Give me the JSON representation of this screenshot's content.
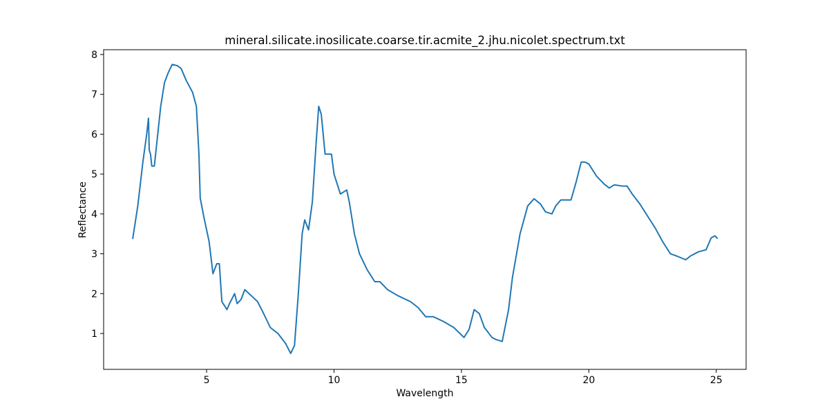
{
  "chart_data": {
    "type": "line",
    "title": "mineral.silicate.inosilicate.coarse.tir.acmite_2.jhu.nicolet.spectrum.txt",
    "xlabel": "Wavelength",
    "ylabel": "Reflectance",
    "color": "#1f77b4",
    "grid": false,
    "x": [
      2.1,
      2.3,
      2.5,
      2.65,
      2.72,
      2.75,
      2.8,
      2.85,
      2.95,
      3.05,
      3.2,
      3.35,
      3.5,
      3.65,
      3.85,
      4.0,
      4.2,
      4.45,
      4.6,
      4.7,
      4.75,
      4.9,
      5.1,
      5.25,
      5.4,
      5.5,
      5.6,
      5.8,
      5.9,
      6.1,
      6.2,
      6.35,
      6.5,
      6.75,
      7.0,
      7.2,
      7.5,
      7.8,
      8.1,
      8.3,
      8.45,
      8.6,
      8.75,
      8.85,
      9.0,
      9.15,
      9.3,
      9.4,
      9.5,
      9.65,
      9.8,
      9.9,
      10.0,
      10.25,
      10.5,
      10.6,
      10.8,
      11.0,
      11.3,
      11.6,
      11.8,
      12.1,
      12.5,
      13.0,
      13.3,
      13.6,
      13.9,
      14.3,
      14.7,
      15.1,
      15.3,
      15.5,
      15.7,
      15.9,
      16.2,
      16.35,
      16.6,
      16.85,
      17.0,
      17.3,
      17.6,
      17.85,
      18.1,
      18.3,
      18.55,
      18.7,
      18.9,
      19.1,
      19.3,
      19.5,
      19.7,
      19.85,
      20.0,
      20.3,
      20.6,
      20.8,
      21.0,
      21.3,
      21.5,
      21.7,
      22.0,
      22.3,
      22.6,
      22.9,
      23.2,
      23.5,
      23.8,
      24.0,
      24.3,
      24.6,
      24.8,
      24.95,
      25.05
    ],
    "values": [
      3.37,
      4.2,
      5.3,
      6.0,
      6.4,
      5.6,
      5.5,
      5.2,
      5.2,
      5.8,
      6.7,
      7.3,
      7.55,
      7.75,
      7.72,
      7.65,
      7.35,
      7.05,
      6.7,
      5.5,
      4.4,
      3.9,
      3.3,
      2.5,
      2.75,
      2.75,
      1.8,
      1.6,
      1.75,
      2.0,
      1.75,
      1.85,
      2.1,
      1.95,
      1.8,
      1.55,
      1.15,
      1.0,
      0.75,
      0.5,
      0.7,
      2.0,
      3.5,
      3.85,
      3.6,
      4.3,
      5.8,
      6.7,
      6.5,
      5.5,
      5.5,
      5.5,
      5.0,
      4.5,
      4.6,
      4.3,
      3.5,
      3.0,
      2.6,
      2.3,
      2.3,
      2.1,
      1.95,
      1.8,
      1.65,
      1.42,
      1.42,
      1.3,
      1.15,
      0.9,
      1.1,
      1.6,
      1.5,
      1.15,
      0.9,
      0.85,
      0.8,
      1.6,
      2.4,
      3.5,
      4.2,
      4.38,
      4.25,
      4.05,
      4.0,
      4.2,
      4.35,
      4.35,
      4.35,
      4.8,
      5.3,
      5.3,
      5.25,
      4.95,
      4.75,
      4.65,
      4.73,
      4.7,
      4.7,
      4.5,
      4.25,
      3.95,
      3.65,
      3.3,
      3.0,
      2.93,
      2.85,
      2.95,
      3.05,
      3.1,
      3.4,
      3.45,
      3.38
    ],
    "xlim": [
      0.96,
      26.17
    ],
    "xticks": [
      5,
      10,
      15,
      20,
      25
    ],
    "ylim": [
      0.1,
      8.12
    ],
    "yticks": [
      1,
      2,
      3,
      4,
      5,
      6,
      7,
      8
    ]
  }
}
